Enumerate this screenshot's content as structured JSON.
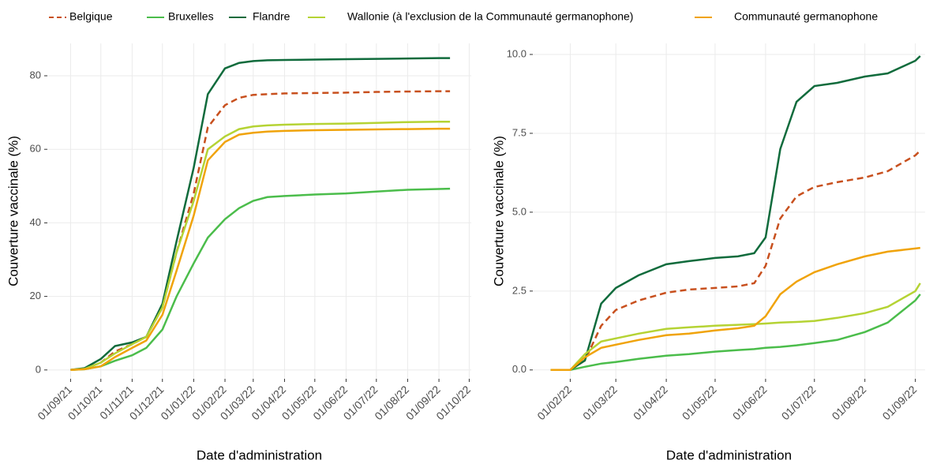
{
  "chart_data": [
    {
      "type": "line",
      "legend": "top",
      "grid": true,
      "x_label": "Date d'administration",
      "y_label": "Couverture vaccinale (%)",
      "xlim": [
        "2021-08-09",
        "2022-10-03"
      ],
      "ylim": [
        -2.4,
        88.8
      ],
      "xticks": [
        {
          "value": "2021-09-01",
          "label": "01/09/21"
        },
        {
          "value": "2021-10-01",
          "label": "01/10/21"
        },
        {
          "value": "2021-11-01",
          "label": "01/11/21"
        },
        {
          "value": "2021-12-01",
          "label": "01/12/21"
        },
        {
          "value": "2022-01-01",
          "label": "01/01/22"
        },
        {
          "value": "2022-02-01",
          "label": "01/02/22"
        },
        {
          "value": "2022-03-01",
          "label": "01/03/22"
        },
        {
          "value": "2022-04-01",
          "label": "01/04/22"
        },
        {
          "value": "2022-05-01",
          "label": "01/05/22"
        },
        {
          "value": "2022-06-01",
          "label": "01/06/22"
        },
        {
          "value": "2022-07-01",
          "label": "01/07/22"
        },
        {
          "value": "2022-08-01",
          "label": "01/08/22"
        },
        {
          "value": "2022-09-01",
          "label": "01/09/22"
        },
        {
          "value": "2022-10-01",
          "label": "01/10/22"
        }
      ],
      "yticks": [
        0,
        20,
        40,
        60,
        80
      ],
      "x": [
        "2021-09-01",
        "2021-09-15",
        "2021-10-01",
        "2021-10-15",
        "2021-11-01",
        "2021-11-15",
        "2021-12-01",
        "2021-12-15",
        "2022-01-01",
        "2022-01-15",
        "2022-02-01",
        "2022-02-15",
        "2022-03-01",
        "2022-03-15",
        "2022-04-01",
        "2022-05-01",
        "2022-06-01",
        "2022-07-01",
        "2022-08-01",
        "2022-09-01",
        "2022-09-12"
      ],
      "series": [
        {
          "name": "Belgique",
          "color": "#c8501e",
          "linestyle": "dashed",
          "values": [
            0,
            0.3,
            2,
            5,
            7,
            9,
            17,
            32,
            48,
            66,
            72,
            74,
            74.8,
            75,
            75.2,
            75.3,
            75.4,
            75.6,
            75.7,
            75.8,
            75.8
          ]
        },
        {
          "name": "Bruxelles",
          "color": "#4bbd4b",
          "linestyle": "solid",
          "values": [
            0,
            0.2,
            1,
            2.5,
            4,
            6,
            11,
            20,
            29,
            36,
            41,
            44,
            46,
            47,
            47.3,
            47.7,
            48,
            48.5,
            49,
            49.2,
            49.3
          ]
        },
        {
          "name": "Flandre",
          "color": "#106b3c",
          "linestyle": "solid",
          "values": [
            0,
            0.5,
            3,
            6.5,
            7.5,
            9,
            18,
            35,
            55,
            75,
            82,
            83.5,
            84,
            84.2,
            84.3,
            84.4,
            84.5,
            84.6,
            84.7,
            84.8,
            84.8
          ]
        },
        {
          "name": "Wallonie (à l'exclusion de la Communauté germanophone)",
          "color": "#b5d334",
          "linestyle": "solid",
          "values": [
            0,
            0.3,
            2,
            4.5,
            7,
            9,
            17,
            32,
            46,
            60,
            63.5,
            65.5,
            66.2,
            66.5,
            66.7,
            66.9,
            67,
            67.2,
            67.4,
            67.5,
            67.5
          ]
        },
        {
          "name": "Communauté germanophone",
          "color": "#f0a30a",
          "linestyle": "solid",
          "values": [
            0,
            0.2,
            1,
            3.5,
            6,
            8,
            15,
            27,
            42,
            57,
            62,
            64,
            64.5,
            64.8,
            65,
            65.2,
            65.3,
            65.4,
            65.5,
            65.6,
            65.6
          ]
        }
      ]
    },
    {
      "type": "line",
      "grid": true,
      "x_label": "Date d'administration",
      "y_label": "Couverture vaccinale (%)",
      "xlim": [
        "2022-01-09",
        "2022-09-07"
      ],
      "ylim": [
        -0.28,
        10.35
      ],
      "xticks": [
        {
          "value": "2022-02-01",
          "label": "01/02/22"
        },
        {
          "value": "2022-03-01",
          "label": "01/03/22"
        },
        {
          "value": "2022-04-01",
          "label": "01/04/22"
        },
        {
          "value": "2022-05-01",
          "label": "01/05/22"
        },
        {
          "value": "2022-06-01",
          "label": "01/06/22"
        },
        {
          "value": "2022-07-01",
          "label": "01/07/22"
        },
        {
          "value": "2022-08-01",
          "label": "01/08/22"
        },
        {
          "value": "2022-09-01",
          "label": "01/09/22"
        }
      ],
      "yticks": [
        {
          "value": 0,
          "label": "0.0"
        },
        {
          "value": 2.5,
          "label": "2.5"
        },
        {
          "value": 5,
          "label": "5.0"
        },
        {
          "value": 7.5,
          "label": "7.5"
        },
        {
          "value": 10,
          "label": "10.0"
        }
      ],
      "x": [
        "2022-01-20",
        "2022-02-01",
        "2022-02-10",
        "2022-02-20",
        "2022-03-01",
        "2022-03-15",
        "2022-04-01",
        "2022-04-15",
        "2022-05-01",
        "2022-05-15",
        "2022-05-25",
        "2022-06-01",
        "2022-06-10",
        "2022-06-20",
        "2022-07-01",
        "2022-07-15",
        "2022-08-01",
        "2022-08-15",
        "2022-09-01",
        "2022-09-04"
      ],
      "series": [
        {
          "name": "Belgique",
          "color": "#c8501e",
          "linestyle": "dashed",
          "values": [
            0,
            0,
            0.3,
            1.4,
            1.9,
            2.2,
            2.45,
            2.55,
            2.6,
            2.65,
            2.75,
            3.3,
            4.8,
            5.5,
            5.8,
            5.95,
            6.1,
            6.3,
            6.8,
            6.95
          ]
        },
        {
          "name": "Bruxelles",
          "color": "#4bbd4b",
          "linestyle": "solid",
          "values": [
            0,
            0,
            0.1,
            0.2,
            0.25,
            0.35,
            0.45,
            0.5,
            0.58,
            0.63,
            0.66,
            0.7,
            0.73,
            0.78,
            0.85,
            0.95,
            1.2,
            1.5,
            2.2,
            2.4
          ]
        },
        {
          "name": "Flandre",
          "color": "#106b3c",
          "linestyle": "solid",
          "values": [
            0,
            0,
            0.3,
            2.1,
            2.6,
            3.0,
            3.35,
            3.45,
            3.55,
            3.6,
            3.7,
            4.2,
            7.0,
            8.5,
            9.0,
            9.1,
            9.3,
            9.4,
            9.8,
            9.95
          ]
        },
        {
          "name": "Wallonie (à l'exclusion de la Communauté germanophone)",
          "color": "#b5d334",
          "linestyle": "solid",
          "values": [
            0,
            0,
            0.5,
            0.9,
            1.0,
            1.15,
            1.3,
            1.35,
            1.4,
            1.43,
            1.45,
            1.47,
            1.5,
            1.52,
            1.55,
            1.65,
            1.8,
            2.0,
            2.5,
            2.75
          ]
        },
        {
          "name": "Communauté germanophone",
          "color": "#f0a30a",
          "linestyle": "solid",
          "values": [
            0,
            0,
            0.4,
            0.7,
            0.8,
            0.95,
            1.1,
            1.15,
            1.25,
            1.32,
            1.4,
            1.7,
            2.4,
            2.8,
            3.1,
            3.35,
            3.6,
            3.75,
            3.85,
            3.87
          ]
        }
      ]
    }
  ]
}
